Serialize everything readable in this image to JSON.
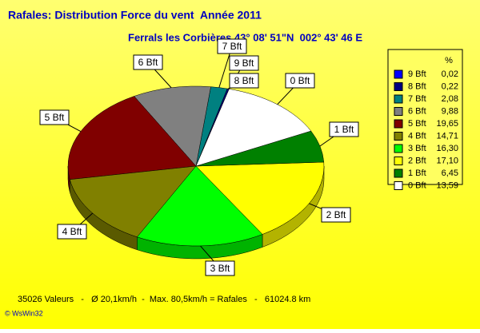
{
  "chart_data": {
    "type": "pie3d",
    "title": "Rafales: Distribution Force du vent  Année 2011",
    "subtitle": "Ferrals les Corbières 43° 08' 51\"N  002° 43' 46 E",
    "legend_header": "%",
    "categories": [
      "9 Bft",
      "8 Bft",
      "7 Bft",
      "6 Bft",
      "5 Bft",
      "4 Bft",
      "3 Bft",
      "2 Bft",
      "1 Bft",
      "0 Bft"
    ],
    "values": [
      0.02,
      0.22,
      2.08,
      9.88,
      19.65,
      14.71,
      16.3,
      17.1,
      6.45,
      13.59
    ],
    "value_labels": [
      "0,02",
      "0,22",
      "2,08",
      "9,88",
      "19,65",
      "14,71",
      "16,30",
      "17,10",
      "6,45",
      "13,59"
    ],
    "colors": [
      "#0000ff",
      "#000080",
      "#008080",
      "#808080",
      "#800000",
      "#808000",
      "#00ff00",
      "#ffff00",
      "#008000",
      "#ffffff"
    ],
    "legend": "right",
    "footer": "35026 Valeurs   -   Ø 20,1km/h  -  Max. 80,5km/h = Rafales   -   61024.8 km",
    "copyright": "© WsWin32"
  }
}
